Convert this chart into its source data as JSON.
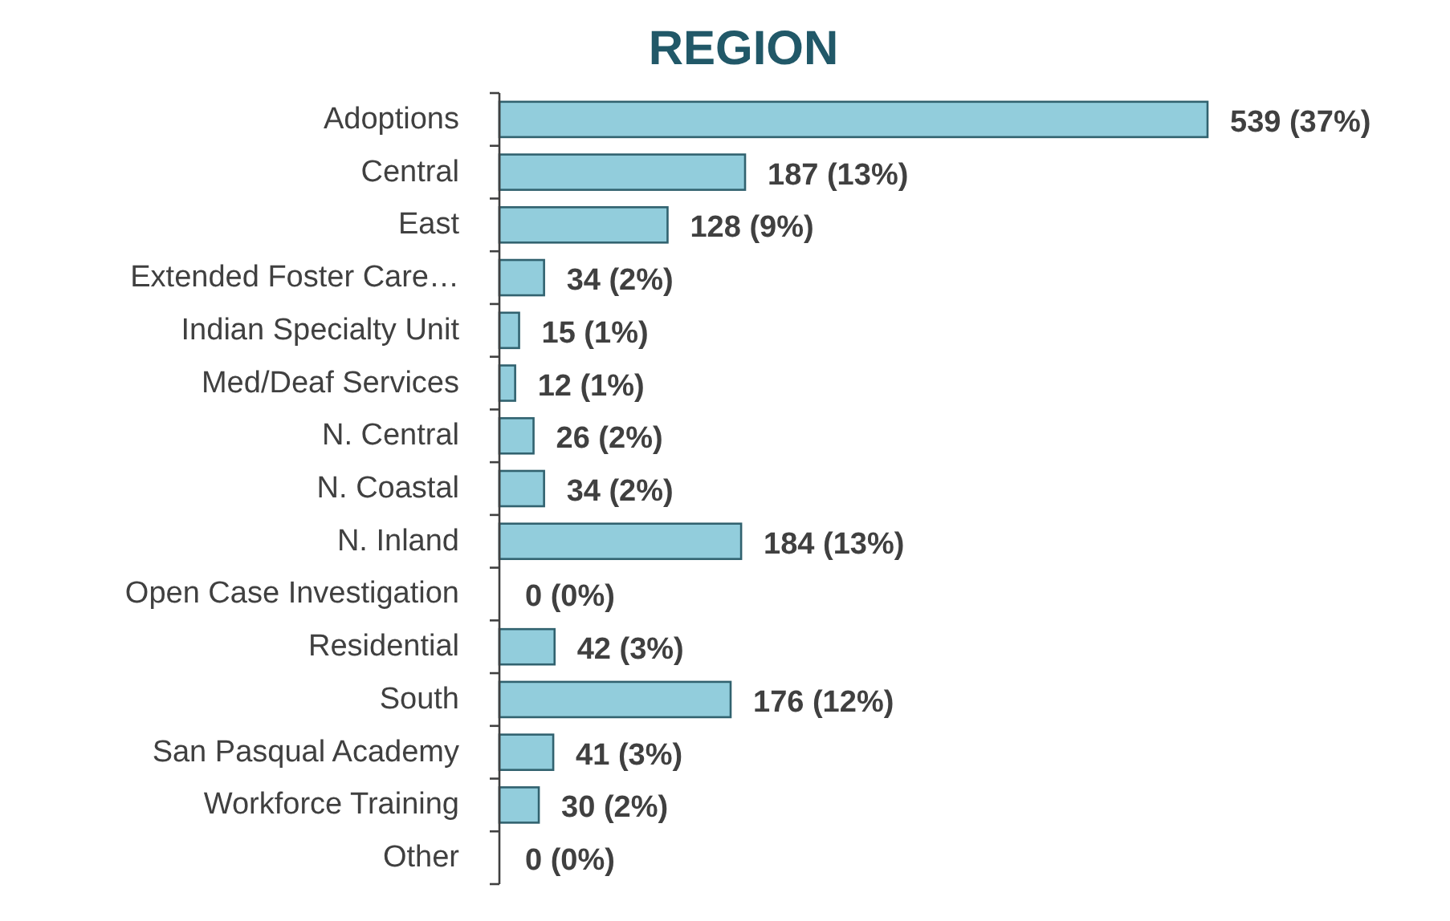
{
  "chart_data": {
    "type": "bar",
    "orientation": "horizontal",
    "title": "REGION",
    "categories": [
      "Adoptions",
      "Central",
      "East",
      "Extended Foster Care…",
      "Indian Specialty Unit",
      "Med/Deaf Services",
      "N. Central",
      "N. Coastal",
      "N. Inland",
      "Open Case Investigation",
      "Residential",
      "South",
      "San Pasqual Academy",
      "Workforce Training",
      "Other"
    ],
    "values": [
      539,
      187,
      128,
      34,
      15,
      12,
      26,
      34,
      184,
      0,
      42,
      176,
      41,
      30,
      0
    ],
    "value_labels": [
      "539 (37%)",
      "187 (13%)",
      "128 (9%)",
      "34 (2%)",
      "15 (1%)",
      "12 (1%)",
      "26 (2%)",
      "34 (2%)",
      "184 (13%)",
      "0 (0%)",
      "42 (3%)",
      "176 (12%)",
      "41 (3%)",
      "30 (2%)",
      "0 (0%)"
    ],
    "color": "#92cddc"
  }
}
